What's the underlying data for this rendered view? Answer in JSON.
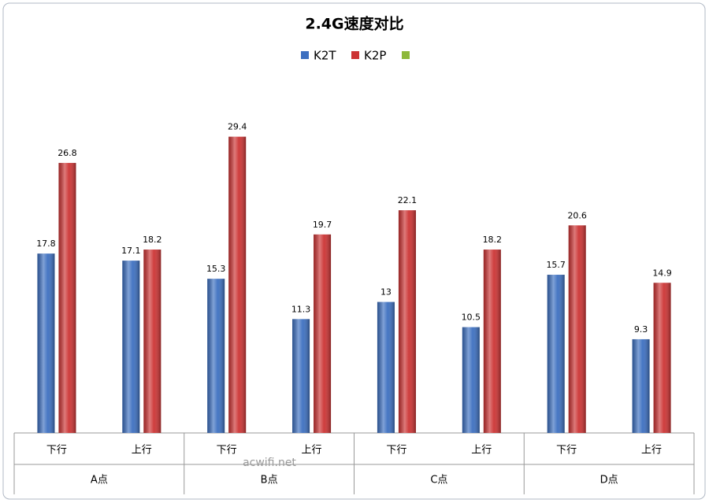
{
  "chart_data": {
    "type": "bar",
    "title": "2.4G速度对比",
    "categories": [
      "下行",
      "上行",
      "下行",
      "上行",
      "下行",
      "上行",
      "下行",
      "上行"
    ],
    "groups": [
      "A点",
      "B点",
      "C点",
      "D点"
    ],
    "series": [
      {
        "name": "K2T",
        "color": "#3c6fc0",
        "values": [
          17.8,
          17.1,
          15.3,
          11.3,
          13,
          10.5,
          15.7,
          9.3
        ]
      },
      {
        "name": "K2P",
        "color": "#cc3333",
        "values": [
          26.8,
          18.2,
          29.4,
          19.7,
          22.1,
          18.2,
          20.6,
          14.9
        ]
      },
      {
        "color": "#8db83a",
        "values": [
          null,
          null,
          null,
          null,
          null,
          null,
          null,
          null
        ]
      }
    ],
    "ylim": [
      0,
      35
    ],
    "watermark": "acwifi.net"
  }
}
